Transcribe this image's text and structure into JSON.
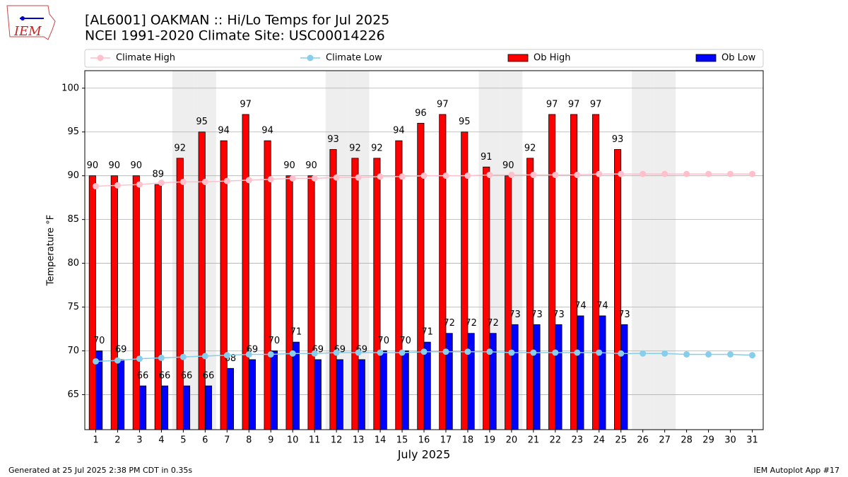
{
  "chart_data": {
    "type": "bar",
    "title": "[AL6001] OAKMAN :: Hi/Lo Temps for Jul 2025",
    "subtitle": "NCEI 1991-2020 Climate Site: USC00014226",
    "logo_text": "IEM",
    "x_label": "July 2025",
    "y_label": "Temperature °F",
    "footer_left": "Generated at 25 Jul 2025 2:38 PM CDT in 0.35s",
    "footer_right": "IEM Autoplot App #17",
    "x": [
      1,
      2,
      3,
      4,
      5,
      6,
      7,
      8,
      9,
      10,
      11,
      12,
      13,
      14,
      15,
      16,
      17,
      18,
      19,
      20,
      21,
      22,
      23,
      24,
      25,
      26,
      27,
      28,
      29,
      30,
      31
    ],
    "xlim": [
      0.5,
      31.5
    ],
    "xticks": [
      1,
      2,
      3,
      4,
      5,
      6,
      7,
      8,
      9,
      10,
      11,
      12,
      13,
      14,
      15,
      16,
      17,
      18,
      19,
      20,
      21,
      22,
      23,
      24,
      25,
      26,
      27,
      28,
      29,
      30,
      31
    ],
    "ylim": [
      61,
      102
    ],
    "yticks": [
      65,
      70,
      75,
      80,
      85,
      90,
      95,
      100
    ],
    "grid": true,
    "highlight_days": [
      5,
      6,
      12,
      13,
      19,
      20,
      26,
      27
    ],
    "highlight_color": "#eeeeee",
    "series": [
      {
        "name": "Climate High",
        "type": "line",
        "color": "pink",
        "values": [
          88.8,
          88.9,
          89.0,
          89.2,
          89.3,
          89.3,
          89.4,
          89.5,
          89.6,
          89.7,
          89.7,
          89.8,
          89.8,
          89.9,
          89.9,
          90.0,
          90.0,
          90.0,
          90.1,
          90.1,
          90.1,
          90.1,
          90.1,
          90.2,
          90.2,
          90.2,
          90.2,
          90.2,
          90.2,
          90.2,
          90.2
        ]
      },
      {
        "name": "Climate Low",
        "type": "line",
        "color": "skyblue",
        "values": [
          68.8,
          68.9,
          69.1,
          69.2,
          69.3,
          69.4,
          69.5,
          69.6,
          69.6,
          69.7,
          69.7,
          69.8,
          69.8,
          69.8,
          69.8,
          69.9,
          69.9,
          69.9,
          69.9,
          69.8,
          69.8,
          69.8,
          69.8,
          69.8,
          69.7,
          69.7,
          69.7,
          69.6,
          69.6,
          69.6,
          69.5
        ]
      },
      {
        "name": "Ob High",
        "type": "bar",
        "color": "#ff0000",
        "values": [
          90,
          90,
          90,
          89,
          92,
          95,
          94,
          97,
          94,
          90,
          90,
          93,
          92,
          92,
          94,
          96,
          97,
          95,
          91,
          90,
          92,
          97,
          97,
          97,
          93,
          null,
          null,
          null,
          null,
          null,
          null
        ]
      },
      {
        "name": "Ob Low",
        "type": "bar",
        "color": "#0000ff",
        "values": [
          70,
          69,
          66,
          66,
          66,
          66,
          68,
          69,
          70,
          71,
          69,
          69,
          69,
          70,
          70,
          71,
          72,
          72,
          72,
          73,
          73,
          73,
          74,
          74,
          73,
          null,
          null,
          null,
          null,
          null,
          null
        ]
      }
    ]
  }
}
